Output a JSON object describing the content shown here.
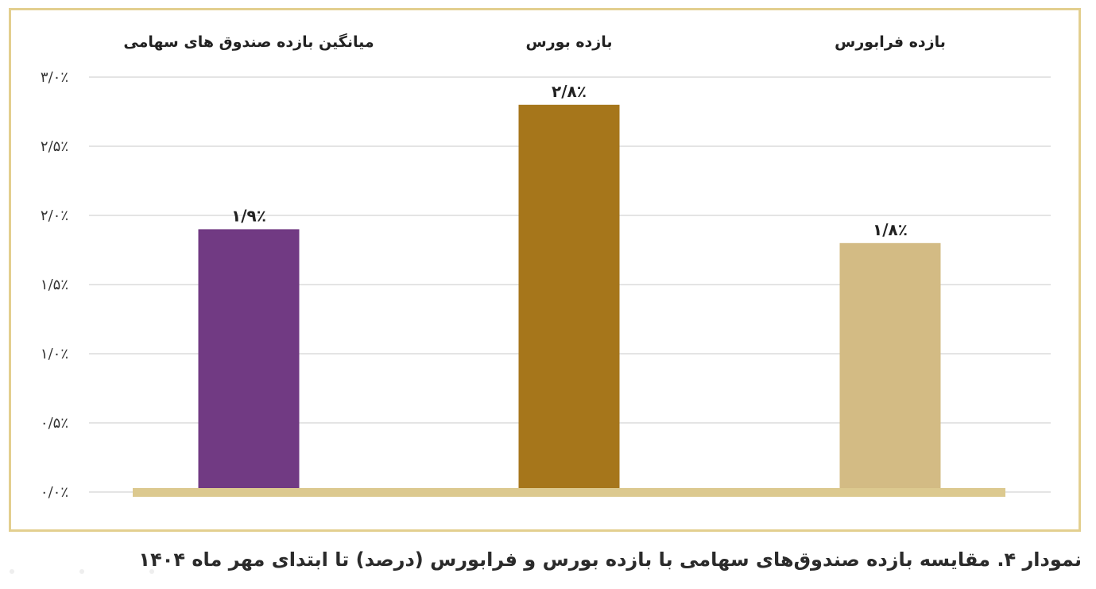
{
  "caption": "نمودار ۴. مقایسه بازده صندوق‌های سهامی با بازده بورس و فرابورس (درصد) تا ابتدای مهر ماه ۱۴۰۴",
  "colors": {
    "frame": "#e3cf8f",
    "baseline": "#dcc98f",
    "grid": "#e4e4e4"
  },
  "chart_data": {
    "type": "bar",
    "categories": [
      "میانگین بازده صندوق های سهامی",
      "بازده بورس",
      "بازده فرابورس"
    ],
    "values": [
      1.9,
      2.8,
      1.8
    ],
    "value_labels": [
      "۱/۹٪",
      "۲/۸٪",
      "۱/۸٪"
    ],
    "bar_colors": [
      "#713a83",
      "#a6761b",
      "#d3bb84"
    ],
    "ylim": [
      0,
      3.0
    ],
    "yticks": [
      0,
      0.5,
      1.0,
      1.5,
      2.0,
      2.5,
      3.0
    ],
    "ytick_labels": [
      "۰/۰٪",
      "۰/۵٪",
      "۱/۰٪",
      "۱/۵٪",
      "۲/۰٪",
      "۲/۵٪",
      "۳/۰٪"
    ],
    "grid": true,
    "legend": "top"
  }
}
